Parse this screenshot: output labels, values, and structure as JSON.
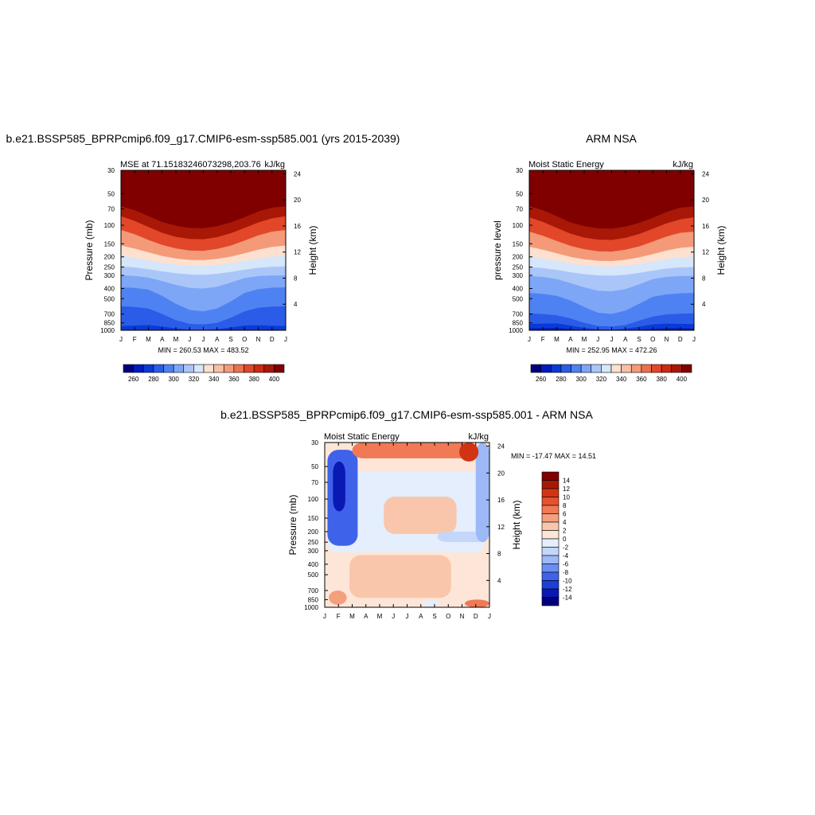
{
  "colors": {
    "mse_levels": [
      "#00007f",
      "#001bbf",
      "#0a3ad6",
      "#2a5ce8",
      "#4e82f2",
      "#7ea6f7",
      "#aac6f9",
      "#d6e6fb",
      "#fde0cf",
      "#f9bfa3",
      "#f49a78",
      "#ee6f4d",
      "#e2472a",
      "#cc2a12",
      "#a91807",
      "#800000"
    ],
    "diff_levels": [
      "#00007f",
      "#0a18b4",
      "#1e3ed9",
      "#3f62ea",
      "#6c8ef2",
      "#9db8f7",
      "#c4d6fa",
      "#e4eefc",
      "#fde6d8",
      "#f9c6ab",
      "#f4a07e",
      "#ef7a55",
      "#e55230",
      "#d13413",
      "#a91807",
      "#800000"
    ]
  },
  "chart_data": [
    {
      "type": "heatmap",
      "title": "b.e21.BSSP585_BPRPcmip6.f09_g17.CMIP6-esm-ssp585.001 (yrs 2015-2039)",
      "subtitle_left": "MSE at 71.15183246073298,203.76",
      "subtitle_right": "kJ/kg",
      "ylabel": "Pressure (mb)",
      "ylabel_right": "Height (km)",
      "x_ticks": [
        "J",
        "F",
        "M",
        "A",
        "M",
        "J",
        "J",
        "A",
        "S",
        "O",
        "N",
        "D",
        "J"
      ],
      "y_ticks": [
        "30",
        "50",
        "70",
        "100",
        "150",
        "200",
        "250",
        "300",
        "400",
        "500",
        "700",
        "850",
        "1000"
      ],
      "y_right_ticks": [
        "24",
        "20",
        "16",
        "12",
        "8",
        "4"
      ],
      "stats": "MIN = 260.53 MAX = 483.52",
      "legend_labels": [
        "260",
        "280",
        "300",
        "320",
        "340",
        "360",
        "380",
        "400"
      ],
      "levels": [
        260,
        270,
        280,
        290,
        300,
        310,
        320,
        330,
        340,
        350,
        360,
        370,
        380,
        390,
        400
      ],
      "boundaries_hPa": {
        "400": [
          66,
          72,
          82,
          93,
          101,
          106,
          107,
          102,
          94,
          84,
          74,
          68,
          66
        ],
        "380": [
          82,
          91,
          104,
          118,
          129,
          135,
          136,
          130,
          119,
          106,
          94,
          86,
          82
        ],
        "360": [
          111,
          122,
          138,
          154,
          166,
          174,
          175,
          168,
          156,
          140,
          125,
          115,
          111
        ],
        "340": [
          156,
          167,
          181,
          196,
          207,
          214,
          215,
          209,
          199,
          185,
          171,
          161,
          156
        ],
        "330": [
          195,
          204,
          216,
          228,
          237,
          243,
          244,
          239,
          231,
          219,
          207,
          199,
          195
        ],
        "320": [
          246,
          252,
          262,
          275,
          286,
          294,
          296,
          290,
          278,
          265,
          254,
          248,
          246
        ],
        "310": [
          300,
          304,
          315,
          340,
          370,
          395,
          400,
          385,
          350,
          318,
          305,
          301,
          300
        ],
        "300": [
          390,
          395,
          410,
          470,
          560,
          640,
          660,
          620,
          530,
          440,
          405,
          393,
          390
        ],
        "290": [
          590,
          600,
          620,
          700,
          800,
          870,
          880,
          850,
          760,
          660,
          610,
          595,
          590
        ],
        "280": [
          910,
          900,
          890,
          920,
          960,
          985,
          990,
          975,
          940,
          900,
          895,
          905,
          910
        ],
        "270": [
          1000,
          1000,
          1000,
          1000,
          1000,
          1000,
          1000,
          1000,
          1000,
          1000,
          1000,
          980,
          1000
        ]
      }
    },
    {
      "type": "heatmap",
      "title": "ARM NSA",
      "subtitle_left": "Moist Static Energy",
      "subtitle_right": "kJ/kg",
      "ylabel": "pressure level",
      "ylabel_right": "Height (km)",
      "x_ticks": [
        "J",
        "F",
        "M",
        "A",
        "M",
        "J",
        "J",
        "A",
        "S",
        "O",
        "N",
        "D",
        "J"
      ],
      "y_ticks": [
        "30",
        "50",
        "70",
        "100",
        "150",
        "200",
        "250",
        "300",
        "400",
        "500",
        "700",
        "850",
        "1000"
      ],
      "y_right_ticks": [
        "24",
        "20",
        "16",
        "12",
        "8",
        "4"
      ],
      "stats": "MIN = 252.95 MAX = 472.26",
      "legend_labels": [
        "260",
        "280",
        "300",
        "320",
        "340",
        "360",
        "380",
        "400"
      ],
      "levels": [
        260,
        270,
        280,
        290,
        300,
        310,
        320,
        330,
        340,
        350,
        360,
        370,
        380,
        390,
        400
      ],
      "boundaries_hPa": {
        "400": [
          66,
          72,
          82,
          94,
          102,
          107,
          108,
          103,
          95,
          85,
          75,
          68,
          66
        ],
        "380": [
          84,
          93,
          106,
          120,
          131,
          137,
          138,
          132,
          121,
          108,
          96,
          88,
          84
        ],
        "360": [
          115,
          126,
          141,
          157,
          169,
          177,
          178,
          171,
          159,
          143,
          128,
          118,
          115
        ],
        "340": [
          160,
          171,
          185,
          200,
          211,
          218,
          219,
          213,
          202,
          188,
          174,
          164,
          160
        ],
        "330": [
          198,
          207,
          219,
          231,
          240,
          246,
          247,
          242,
          234,
          222,
          210,
          202,
          198
        ],
        "320": [
          250,
          256,
          266,
          280,
          292,
          300,
          302,
          296,
          284,
          270,
          258,
          252,
          250
        ],
        "310": [
          305,
          310,
          325,
          355,
          390,
          420,
          425,
          405,
          365,
          325,
          310,
          305,
          305
        ],
        "300": [
          440,
          450,
          470,
          520,
          600,
          680,
          700,
          650,
          560,
          480,
          455,
          445,
          440
        ],
        "290": [
          690,
          700,
          720,
          770,
          850,
          910,
          920,
          890,
          810,
          740,
          705,
          695,
          690
        ],
        "280": [
          870,
          865,
          860,
          900,
          950,
          980,
          985,
          965,
          925,
          880,
          865,
          870,
          870
        ],
        "270": [
          960,
          955,
          950,
          975,
          995,
          1000,
          1000,
          1000,
          990,
          970,
          955,
          955,
          960
        ]
      }
    },
    {
      "type": "heatmap",
      "title": "b.e21.BSSP585_BPRPcmip6.f09_g17.CMIP6-esm-ssp585.001 - ARM NSA",
      "subtitle_left": "Moist Static Energy",
      "subtitle_right": "kJ/kg",
      "ylabel": "Pressure (mb)",
      "ylabel_right": "Height (km)",
      "x_ticks": [
        "J",
        "F",
        "M",
        "A",
        "M",
        "J",
        "J",
        "A",
        "S",
        "O",
        "N",
        "D",
        "J"
      ],
      "y_ticks": [
        "30",
        "50",
        "70",
        "100",
        "150",
        "200",
        "250",
        "300",
        "400",
        "500",
        "700",
        "850",
        "1000"
      ],
      "y_right_ticks": [
        "24",
        "20",
        "16",
        "12",
        "8",
        "4"
      ],
      "stats": "MIN = -17.47 MAX =  14.51",
      "legend_labels": [
        "14",
        "12",
        "10",
        "8",
        "6",
        "4",
        "2",
        "0",
        "-2",
        "-4",
        "-6",
        "-8",
        "-10",
        "-12",
        "-14"
      ],
      "levels": [
        -14,
        -12,
        -10,
        -8,
        -6,
        -4,
        -2,
        0,
        2,
        4,
        6,
        8,
        10,
        12,
        14
      ],
      "columns_hPa": [
        [
          400,
          1000
        ],
        [
          30,
          1000
        ],
        [
          30,
          1000
        ],
        [
          30,
          1000
        ],
        [
          30,
          1000
        ],
        [
          30,
          1000
        ],
        [
          30,
          1000
        ],
        [
          30,
          1000
        ],
        [
          30,
          1000
        ],
        [
          30,
          1000
        ],
        [
          30,
          1000
        ],
        [
          30,
          1000
        ],
        [
          30,
          1000
        ]
      ],
      "regions": [
        {
          "value": -1,
          "pressure": [
            55,
            320
          ],
          "months": [
            0.2,
            11.6
          ]
        },
        {
          "value": 1,
          "pressure": [
            310,
            1000
          ],
          "months": [
            0,
            12
          ]
        },
        {
          "value": 3,
          "pressure": [
            330,
            820
          ],
          "months": [
            1.8,
            9.2
          ]
        },
        {
          "value": 2,
          "pressure": [
            95,
            210
          ],
          "months": [
            4.3,
            9.6
          ]
        },
        {
          "value": -3,
          "pressure": [
            200,
            250
          ],
          "months": [
            8.2,
            11.8
          ]
        },
        {
          "value": -10,
          "pressure": [
            35,
            270
          ],
          "months": [
            0.2,
            2.4
          ]
        },
        {
          "value": -13,
          "pressure": [
            45,
            130
          ],
          "months": [
            0.6,
            1.5
          ]
        },
        {
          "value": -6,
          "pressure": [
            30,
            250
          ],
          "months": [
            11.0,
            12.0
          ]
        },
        {
          "value": 6,
          "pressure": [
            30,
            42
          ],
          "months": [
            2.0,
            10.6
          ]
        },
        {
          "value": 10,
          "pressure": [
            30,
            45
          ],
          "months": [
            9.8,
            11.2
          ]
        },
        {
          "value": 4,
          "pressure": [
            700,
            950
          ],
          "months": [
            0.3,
            1.6
          ]
        },
        {
          "value": 6,
          "pressure": [
            850,
            1000
          ],
          "months": [
            10.2,
            12.0
          ]
        },
        {
          "value": -2,
          "pressure": [
            860,
            980
          ],
          "months": [
            7.0,
            8.4
          ]
        }
      ]
    }
  ]
}
